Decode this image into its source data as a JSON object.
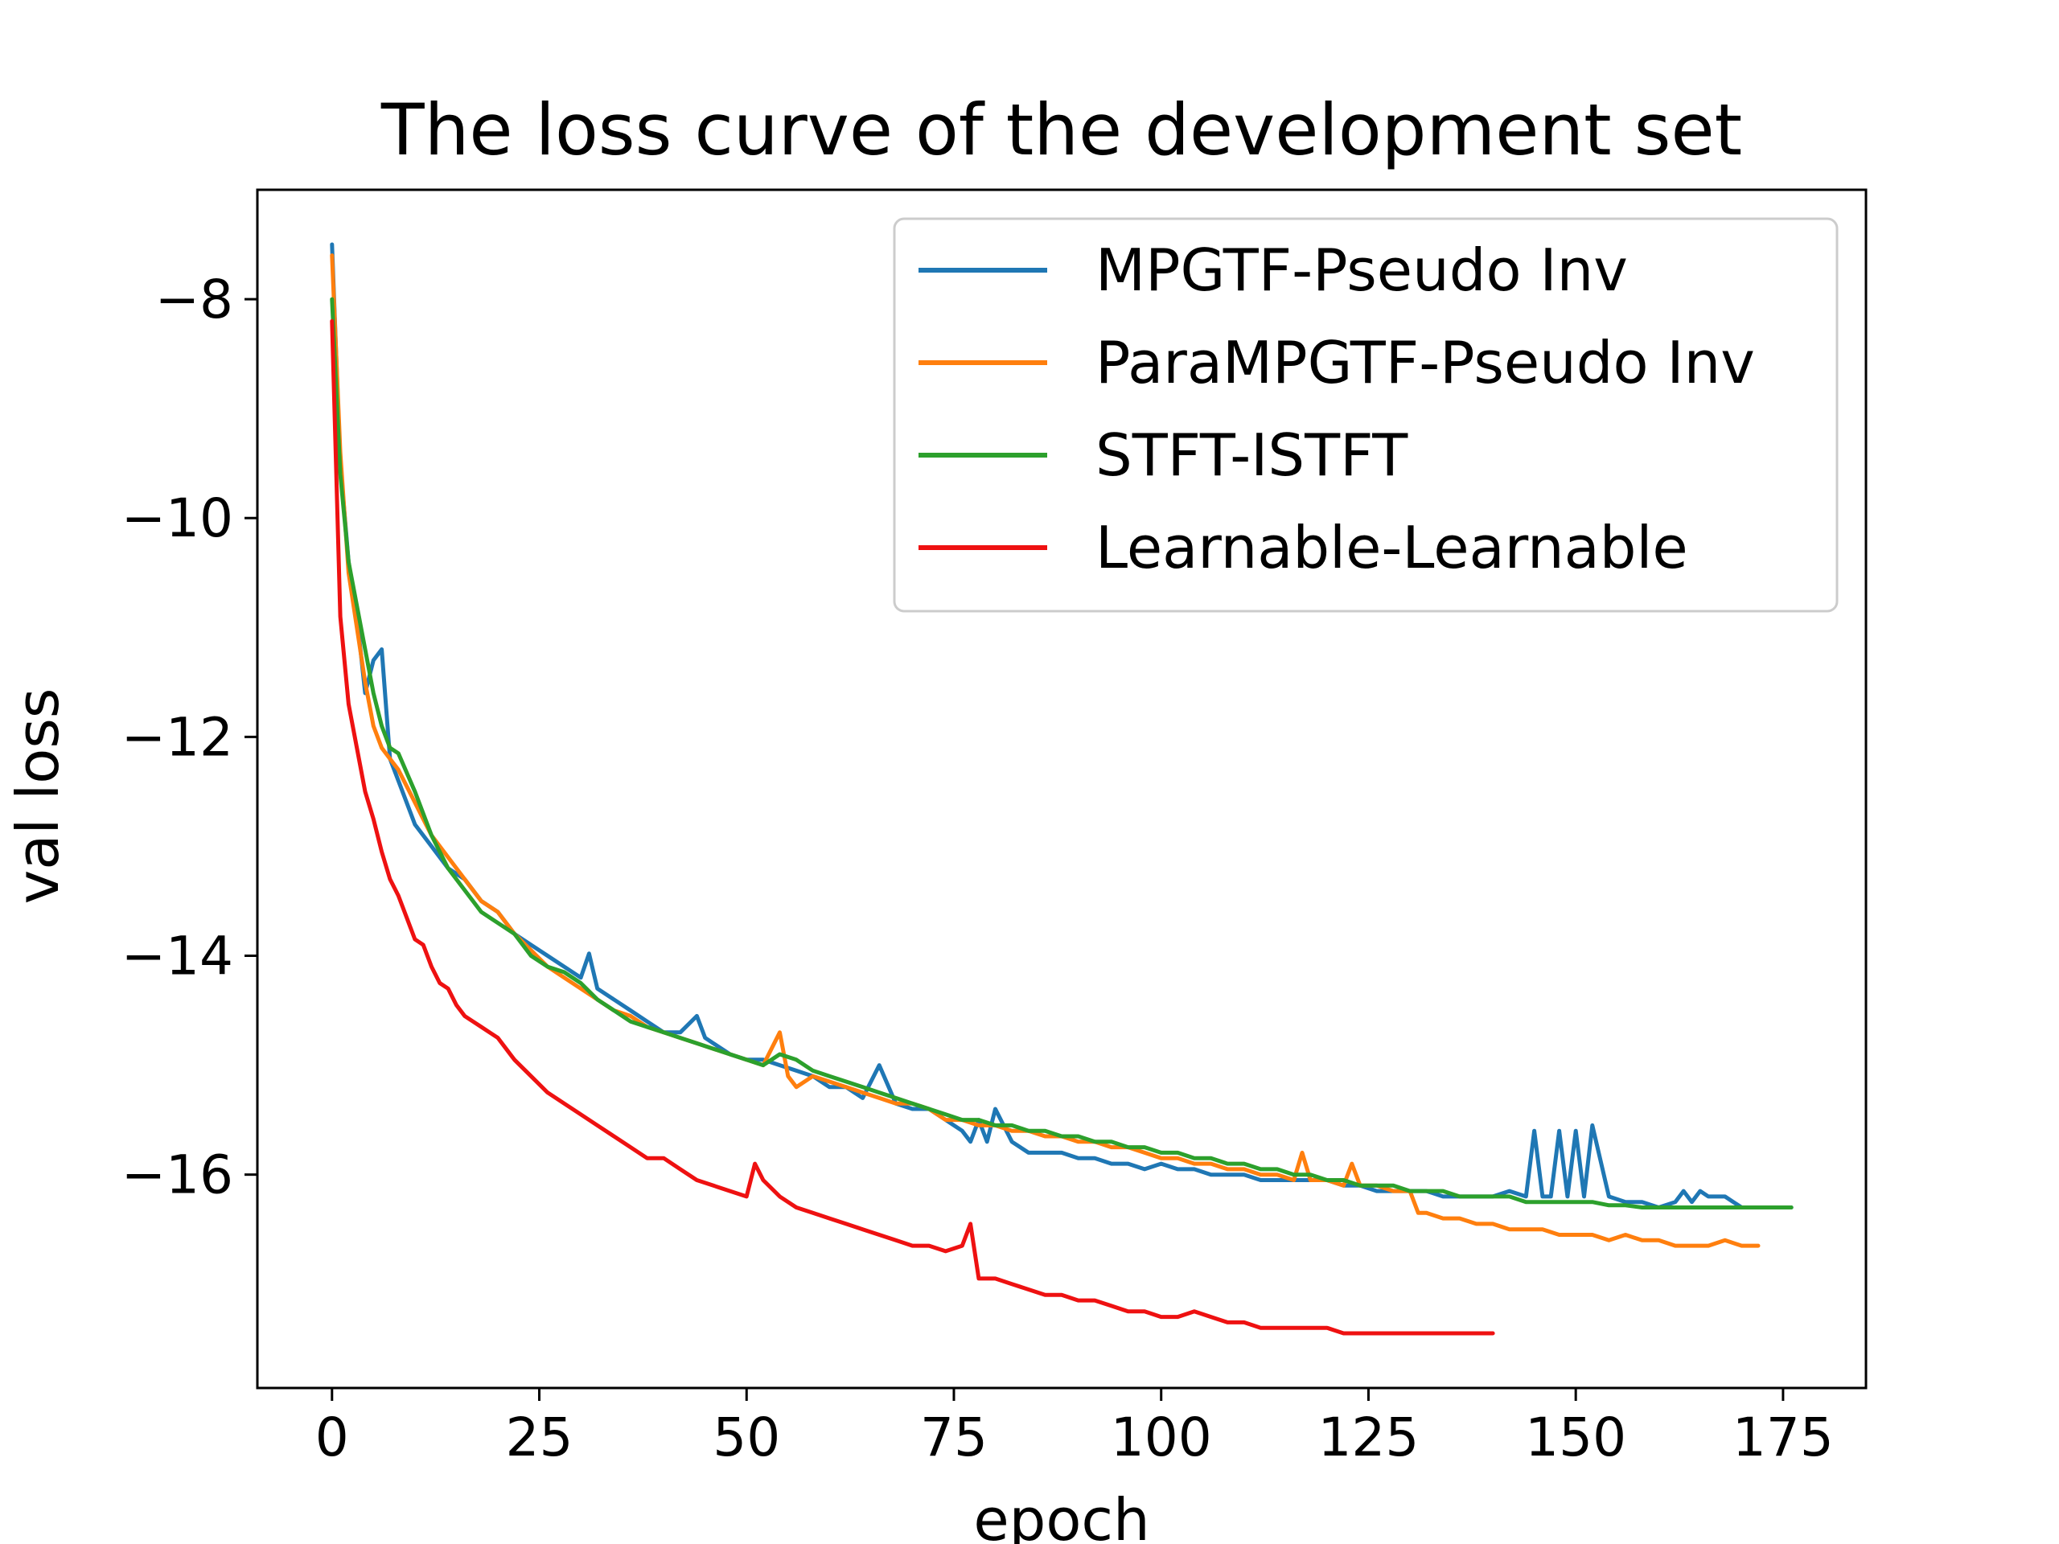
{
  "chart_data": {
    "type": "line",
    "title": "The loss curve of the development set",
    "xlabel": "epoch",
    "ylabel": "val loss",
    "xlim": [
      -9,
      185
    ],
    "ylim": [
      -17.95,
      -7.0
    ],
    "xticks": [
      0,
      25,
      50,
      75,
      100,
      125,
      150,
      175
    ],
    "yticks": [
      -8,
      -10,
      -12,
      -14,
      -16
    ],
    "xtick_labels": [
      "0",
      "25",
      "50",
      "75",
      "100",
      "125",
      "150",
      "175"
    ],
    "ytick_labels": [
      "−8",
      "−10",
      "−12",
      "−14",
      "−16"
    ],
    "grid": false,
    "legend_position": "top-right",
    "series": [
      {
        "name": "MPGTF-Pseudo Inv",
        "color": "#1f77b4",
        "x": [
          0,
          1,
          2,
          3,
          4,
          5,
          6,
          7,
          8,
          10,
          12,
          14,
          16,
          18,
          20,
          22,
          24,
          26,
          28,
          30,
          31,
          32,
          34,
          36,
          38,
          40,
          42,
          44,
          45,
          46,
          48,
          50,
          52,
          54,
          56,
          58,
          60,
          62,
          64,
          66,
          68,
          70,
          72,
          74,
          76,
          77,
          78,
          79,
          80,
          82,
          84,
          86,
          88,
          90,
          92,
          94,
          96,
          98,
          100,
          102,
          104,
          106,
          108,
          110,
          112,
          114,
          116,
          118,
          120,
          122,
          124,
          126,
          128,
          130,
          132,
          134,
          136,
          138,
          140,
          142,
          144,
          145,
          146,
          147,
          148,
          149,
          150,
          151,
          152,
          154,
          156,
          158,
          160,
          162,
          163,
          164,
          165,
          166,
          168,
          170,
          172,
          174,
          176
        ],
        "values": [
          -7.5,
          -9.5,
          -10.4,
          -10.9,
          -11.6,
          -11.3,
          -11.2,
          -12.2,
          -12.4,
          -12.8,
          -13.0,
          -13.2,
          -13.3,
          -13.5,
          -13.6,
          -13.8,
          -13.9,
          -14.0,
          -14.1,
          -14.2,
          -13.98,
          -14.3,
          -14.4,
          -14.5,
          -14.6,
          -14.7,
          -14.7,
          -14.55,
          -14.75,
          -14.8,
          -14.9,
          -14.95,
          -14.95,
          -15.0,
          -15.05,
          -15.1,
          -15.2,
          -15.2,
          -15.3,
          -15.0,
          -15.35,
          -15.4,
          -15.4,
          -15.5,
          -15.6,
          -15.7,
          -15.5,
          -15.7,
          -15.4,
          -15.7,
          -15.8,
          -15.8,
          -15.8,
          -15.85,
          -15.85,
          -15.9,
          -15.9,
          -15.95,
          -15.9,
          -15.95,
          -15.95,
          -16.0,
          -16.0,
          -16.0,
          -16.05,
          -16.05,
          -16.05,
          -16.05,
          -16.05,
          -16.1,
          -16.1,
          -16.15,
          -16.15,
          -16.15,
          -16.15,
          -16.2,
          -16.2,
          -16.2,
          -16.2,
          -16.15,
          -16.2,
          -15.6,
          -16.2,
          -16.2,
          -15.6,
          -16.2,
          -15.6,
          -16.2,
          -15.55,
          -16.2,
          -16.25,
          -16.25,
          -16.3,
          -16.25,
          -16.15,
          -16.25,
          -16.15,
          -16.2,
          -16.2,
          -16.3,
          -16.3,
          -16.3,
          -16.3
        ]
      },
      {
        "name": "ParaMPGTF-Pseudo Inv",
        "color": "#ff7f0e",
        "x": [
          0,
          1,
          2,
          3,
          4,
          5,
          6,
          7,
          8,
          10,
          12,
          14,
          16,
          18,
          20,
          22,
          24,
          26,
          28,
          30,
          32,
          34,
          36,
          38,
          40,
          42,
          44,
          46,
          48,
          50,
          52,
          54,
          55,
          56,
          58,
          60,
          62,
          64,
          66,
          68,
          70,
          72,
          74,
          76,
          78,
          80,
          82,
          84,
          86,
          88,
          90,
          92,
          94,
          96,
          98,
          100,
          102,
          104,
          106,
          108,
          110,
          112,
          114,
          116,
          117,
          118,
          120,
          122,
          123,
          124,
          126,
          128,
          130,
          131,
          132,
          134,
          136,
          138,
          140,
          142,
          144,
          146,
          148,
          150,
          152,
          154,
          156,
          158,
          160,
          162,
          164,
          166,
          168,
          170,
          172
        ],
        "values": [
          -7.6,
          -9.4,
          -10.5,
          -11.0,
          -11.5,
          -11.9,
          -12.1,
          -12.2,
          -12.3,
          -12.6,
          -12.9,
          -13.1,
          -13.3,
          -13.5,
          -13.6,
          -13.8,
          -13.95,
          -14.1,
          -14.2,
          -14.3,
          -14.4,
          -14.5,
          -14.55,
          -14.65,
          -14.7,
          -14.75,
          -14.8,
          -14.85,
          -14.9,
          -14.95,
          -15.0,
          -14.7,
          -15.1,
          -15.2,
          -15.1,
          -15.15,
          -15.2,
          -15.25,
          -15.3,
          -15.35,
          -15.35,
          -15.4,
          -15.5,
          -15.5,
          -15.55,
          -15.55,
          -15.6,
          -15.6,
          -15.65,
          -15.65,
          -15.7,
          -15.7,
          -15.75,
          -15.75,
          -15.8,
          -15.85,
          -15.85,
          -15.9,
          -15.9,
          -15.95,
          -15.95,
          -16.0,
          -16.0,
          -16.05,
          -15.8,
          -16.05,
          -16.05,
          -16.1,
          -15.9,
          -16.1,
          -16.1,
          -16.15,
          -16.15,
          -16.35,
          -16.35,
          -16.4,
          -16.4,
          -16.45,
          -16.45,
          -16.5,
          -16.5,
          -16.5,
          -16.55,
          -16.55,
          -16.55,
          -16.6,
          -16.55,
          -16.6,
          -16.6,
          -16.65,
          -16.65,
          -16.65,
          -16.6,
          -16.65,
          -16.65
        ]
      },
      {
        "name": "STFT-ISTFT",
        "color": "#2ca02c",
        "x": [
          0,
          1,
          2,
          3,
          4,
          5,
          6,
          7,
          8,
          10,
          12,
          14,
          16,
          18,
          20,
          22,
          24,
          26,
          28,
          30,
          32,
          34,
          36,
          38,
          40,
          42,
          44,
          46,
          48,
          50,
          52,
          54,
          56,
          58,
          60,
          62,
          64,
          66,
          68,
          70,
          72,
          74,
          76,
          78,
          80,
          82,
          84,
          86,
          88,
          90,
          92,
          94,
          96,
          98,
          100,
          102,
          104,
          106,
          108,
          110,
          112,
          114,
          116,
          118,
          120,
          122,
          124,
          126,
          128,
          130,
          132,
          134,
          136,
          138,
          140,
          142,
          144,
          146,
          148,
          150,
          152,
          154,
          156,
          158,
          160,
          162,
          164,
          166,
          168,
          170,
          172,
          174,
          176
        ],
        "values": [
          -8.0,
          -9.6,
          -10.4,
          -10.8,
          -11.2,
          -11.6,
          -11.9,
          -12.1,
          -12.15,
          -12.5,
          -12.9,
          -13.2,
          -13.4,
          -13.6,
          -13.7,
          -13.8,
          -14.0,
          -14.1,
          -14.15,
          -14.25,
          -14.4,
          -14.5,
          -14.6,
          -14.65,
          -14.7,
          -14.75,
          -14.8,
          -14.85,
          -14.9,
          -14.95,
          -15.0,
          -14.9,
          -14.95,
          -15.05,
          -15.1,
          -15.15,
          -15.2,
          -15.25,
          -15.3,
          -15.35,
          -15.4,
          -15.45,
          -15.5,
          -15.5,
          -15.55,
          -15.55,
          -15.6,
          -15.6,
          -15.65,
          -15.65,
          -15.7,
          -15.7,
          -15.75,
          -15.75,
          -15.8,
          -15.8,
          -15.85,
          -15.85,
          -15.9,
          -15.9,
          -15.95,
          -15.95,
          -16.0,
          -16.0,
          -16.05,
          -16.05,
          -16.1,
          -16.1,
          -16.1,
          -16.15,
          -16.15,
          -16.15,
          -16.2,
          -16.2,
          -16.2,
          -16.2,
          -16.25,
          -16.25,
          -16.25,
          -16.25,
          -16.25,
          -16.28,
          -16.28,
          -16.3,
          -16.3,
          -16.3,
          -16.3,
          -16.3,
          -16.3,
          -16.3,
          -16.3,
          -16.3,
          -16.3
        ]
      },
      {
        "name": "Learnable-Learnable",
        "color": "#ee1111",
        "x": [
          0,
          1,
          2,
          3,
          4,
          5,
          6,
          7,
          8,
          9,
          10,
          11,
          12,
          13,
          14,
          15,
          16,
          17,
          18,
          19,
          20,
          22,
          24,
          26,
          28,
          30,
          32,
          34,
          36,
          38,
          40,
          42,
          44,
          46,
          48,
          50,
          51,
          52,
          54,
          56,
          58,
          60,
          62,
          64,
          66,
          68,
          70,
          72,
          74,
          76,
          77,
          78,
          80,
          82,
          84,
          86,
          88,
          90,
          92,
          94,
          96,
          98,
          100,
          102,
          104,
          106,
          108,
          110,
          112,
          114,
          116,
          118,
          120,
          122,
          124,
          126,
          128,
          130,
          132,
          134,
          136,
          138,
          140
        ],
        "values": [
          -8.2,
          -10.9,
          -11.7,
          -12.1,
          -12.5,
          -12.75,
          -13.05,
          -13.3,
          -13.45,
          -13.65,
          -13.85,
          -13.9,
          -14.1,
          -14.25,
          -14.3,
          -14.45,
          -14.55,
          -14.6,
          -14.65,
          -14.7,
          -14.75,
          -14.95,
          -15.1,
          -15.25,
          -15.35,
          -15.45,
          -15.55,
          -15.65,
          -15.75,
          -15.85,
          -15.85,
          -15.95,
          -16.05,
          -16.1,
          -16.15,
          -16.2,
          -15.9,
          -16.05,
          -16.2,
          -16.3,
          -16.35,
          -16.4,
          -16.45,
          -16.5,
          -16.55,
          -16.6,
          -16.65,
          -16.65,
          -16.7,
          -16.65,
          -16.45,
          -16.95,
          -16.95,
          -17.0,
          -17.05,
          -17.1,
          -17.1,
          -17.15,
          -17.15,
          -17.2,
          -17.25,
          -17.25,
          -17.3,
          -17.3,
          -17.25,
          -17.3,
          -17.35,
          -17.35,
          -17.4,
          -17.4,
          -17.4,
          -17.4,
          -17.4,
          -17.45,
          -17.45,
          -17.45,
          -17.45,
          -17.45,
          -17.45,
          -17.45,
          -17.45,
          -17.45,
          -17.45
        ]
      }
    ]
  }
}
